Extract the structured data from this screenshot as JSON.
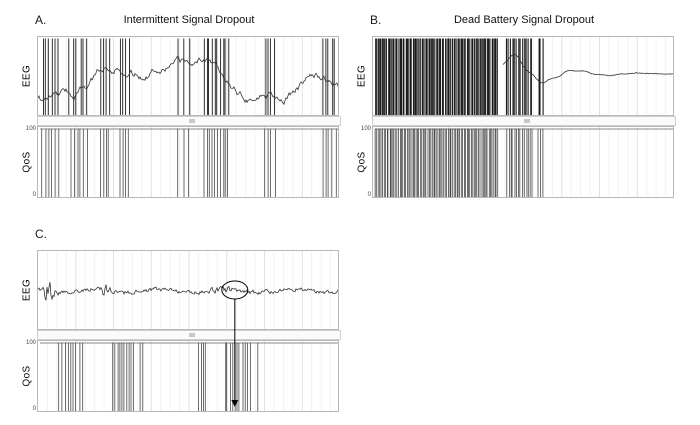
{
  "chart_data": [
    {
      "panel": "A",
      "label": "A.",
      "title": "Intermittent Signal Dropout",
      "type": "line",
      "eeg": {
        "ylabel": "EEG",
        "signal": "wander",
        "seed": 7,
        "show_dropouts": true,
        "dropout_line_width": 0.9,
        "content": "continuous wandering EEG trace interrupted by full-scale vertical dropout artifacts"
      },
      "qos": {
        "ylabel": "QoS",
        "ymax": "100",
        "ymin": "0",
        "ylim": [
          0,
          100
        ],
        "content": "QoS holds at 100 and drops to 0 during each signal dropout"
      },
      "dropout_regions": [
        {
          "start": 0.01,
          "end": 0.075,
          "count": 6
        },
        {
          "start": 0.1,
          "end": 0.17,
          "count": 6
        },
        {
          "start": 0.2,
          "end": 0.24,
          "count": 4
        },
        {
          "start": 0.265,
          "end": 0.305,
          "count": 4
        },
        {
          "start": 0.46,
          "end": 0.505,
          "count": 3
        },
        {
          "start": 0.545,
          "end": 0.635,
          "count": 10
        },
        {
          "start": 0.745,
          "end": 0.79,
          "count": 4
        },
        {
          "start": 0.935,
          "end": 0.99,
          "count": 5
        }
      ]
    },
    {
      "panel": "B",
      "label": "B.",
      "title": "Dead Battery Signal Dropout",
      "type": "line",
      "eeg": {
        "ylabel": "EEG",
        "signal": "dead",
        "seed": 11,
        "show_dropouts": true,
        "dropout_line_width": 1.1,
        "content": "dense continuous dropout bars over first ~40% of record, then decaying smooth EEG that flattens to a flat line"
      },
      "qos": {
        "ylabel": "QoS",
        "ymax": "100",
        "ymin": "0",
        "ylim": [
          0,
          100
        ],
        "content": "QoS repeatedly at 0 across dense dropout period, then steady at 100"
      },
      "dropout_regions": [
        {
          "start": 0.005,
          "end": 0.415,
          "count": 85
        },
        {
          "start": 0.44,
          "end": 0.53,
          "count": 14
        },
        {
          "start": 0.545,
          "end": 0.565,
          "count": 3
        }
      ]
    },
    {
      "panel": "C",
      "label": "C.",
      "title": "",
      "type": "line",
      "eeg": {
        "ylabel": "EEG",
        "signal": "noise",
        "seed": 23,
        "show_dropouts": false,
        "dropout_line_width": 0,
        "content": "continuous noisy EEG trace with early high-amplitude bursts; circled artifact linked by arrow to QoS dropout cluster"
      },
      "qos": {
        "ylabel": "QoS",
        "ymax": "100",
        "ymin": "0",
        "ylim": [
          0,
          100
        ],
        "content": "QoS at 100 with clustered drops to 0"
      },
      "dropout_regions": [
        {
          "start": 0.065,
          "end": 0.15,
          "count": 9
        },
        {
          "start": 0.245,
          "end": 0.32,
          "count": 10
        },
        {
          "start": 0.335,
          "end": 0.35,
          "count": 2
        },
        {
          "start": 0.525,
          "end": 0.56,
          "count": 4
        },
        {
          "start": 0.615,
          "end": 0.705,
          "count": 11
        },
        {
          "start": 0.72,
          "end": 0.73,
          "count": 1
        }
      ],
      "annotation": {
        "type": "ellipse-arrow",
        "x_fraction": 0.655,
        "note": "ellipse circling EEG artifact with downward arrow into QoS dropout cluster"
      }
    }
  ]
}
